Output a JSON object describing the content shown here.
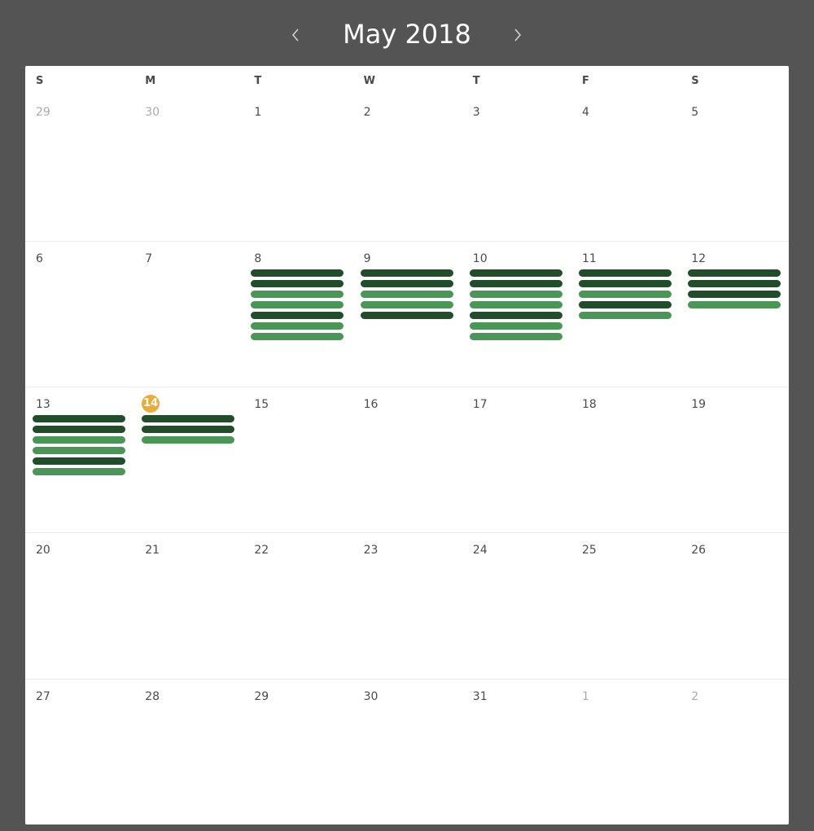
{
  "header": {
    "title": "May 2018"
  },
  "colors": {
    "event_dark": "#214d2a",
    "event_light": "#4a9657",
    "today": "#e8ac3a"
  },
  "weekdays": [
    "S",
    "M",
    "T",
    "W",
    "T",
    "F",
    "S"
  ],
  "weeks": [
    {
      "days": [
        {
          "num": "29",
          "other": true,
          "events": []
        },
        {
          "num": "30",
          "other": true,
          "events": []
        },
        {
          "num": "1",
          "events": []
        },
        {
          "num": "2",
          "events": []
        },
        {
          "num": "3",
          "events": []
        },
        {
          "num": "4",
          "events": []
        },
        {
          "num": "5",
          "events": []
        }
      ]
    },
    {
      "days": [
        {
          "num": "6",
          "events": []
        },
        {
          "num": "7",
          "events": []
        },
        {
          "num": "8",
          "events": [
            "dark",
            "dark",
            "light",
            "light",
            "dark",
            "light",
            "light"
          ]
        },
        {
          "num": "9",
          "events": [
            "dark",
            "dark",
            "light",
            "light",
            "dark"
          ]
        },
        {
          "num": "10",
          "events": [
            "dark",
            "dark",
            "light",
            "light",
            "dark",
            "light",
            "light"
          ]
        },
        {
          "num": "11",
          "events": [
            "dark",
            "dark",
            "light",
            "dark",
            "light"
          ]
        },
        {
          "num": "12",
          "events": [
            "dark",
            "dark",
            "dark",
            "light"
          ]
        }
      ]
    },
    {
      "days": [
        {
          "num": "13",
          "events": [
            "dark",
            "dark",
            "light",
            "light",
            "dark",
            "light"
          ]
        },
        {
          "num": "14",
          "today": true,
          "events": [
            "dark",
            "dark",
            "light"
          ]
        },
        {
          "num": "15",
          "events": []
        },
        {
          "num": "16",
          "events": []
        },
        {
          "num": "17",
          "events": []
        },
        {
          "num": "18",
          "events": []
        },
        {
          "num": "19",
          "events": []
        }
      ]
    },
    {
      "days": [
        {
          "num": "20",
          "events": []
        },
        {
          "num": "21",
          "events": []
        },
        {
          "num": "22",
          "events": []
        },
        {
          "num": "23",
          "events": []
        },
        {
          "num": "24",
          "events": []
        },
        {
          "num": "25",
          "events": []
        },
        {
          "num": "26",
          "events": []
        }
      ]
    },
    {
      "days": [
        {
          "num": "27",
          "events": []
        },
        {
          "num": "28",
          "events": []
        },
        {
          "num": "29",
          "events": []
        },
        {
          "num": "30",
          "events": []
        },
        {
          "num": "31",
          "events": []
        },
        {
          "num": "1",
          "other": true,
          "events": []
        },
        {
          "num": "2",
          "other": true,
          "events": []
        }
      ]
    }
  ]
}
